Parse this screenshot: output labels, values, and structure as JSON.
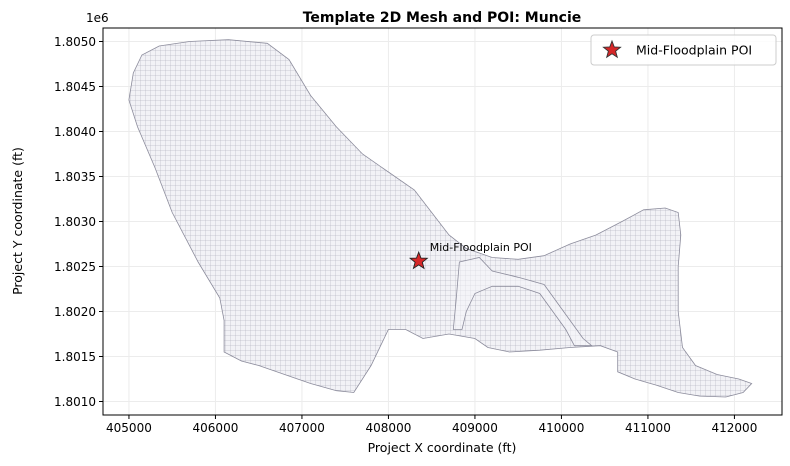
{
  "chart_data": {
    "type": "scatter",
    "title": "Template 2D Mesh and POI: Muncie",
    "xlabel": "Project X coordinate (ft)",
    "ylabel": "Project Y coordinate (ft)",
    "y_offset_label": "1e6",
    "xlim": [
      404700,
      412550
    ],
    "ylim": [
      1.80085,
      1.80515
    ],
    "x_ticks": [
      405000,
      406000,
      407000,
      408000,
      409000,
      410000,
      411000,
      412000
    ],
    "x_tick_labels": [
      "405000",
      "406000",
      "407000",
      "408000",
      "409000",
      "410000",
      "411000",
      "412000"
    ],
    "y_ticks": [
      1.801,
      1.8015,
      1.802,
      1.8025,
      1.803,
      1.8035,
      1.804,
      1.8045,
      1.805
    ],
    "y_tick_labels": [
      "1.8010",
      "1.8015",
      "1.8020",
      "1.8025",
      "1.8030",
      "1.8035",
      "1.8040",
      "1.8045",
      "1.8050"
    ],
    "grid": true,
    "legend_position": "top-right",
    "mesh_outline": [
      [
        405000,
        1.80435
      ],
      [
        405050,
        1.80465
      ],
      [
        405150,
        1.80485
      ],
      [
        405350,
        1.80495
      ],
      [
        405700,
        1.805
      ],
      [
        406150,
        1.80502
      ],
      [
        406600,
        1.80498
      ],
      [
        406850,
        1.8048
      ],
      [
        407100,
        1.8044
      ],
      [
        407400,
        1.80405
      ],
      [
        407700,
        1.80375
      ],
      [
        408000,
        1.80355
      ],
      [
        408300,
        1.80335
      ],
      [
        408500,
        1.8031
      ],
      [
        408700,
        1.80285
      ],
      [
        408900,
        1.8027
      ],
      [
        409200,
        1.8026
      ],
      [
        409500,
        1.80258
      ],
      [
        409800,
        1.80262
      ],
      [
        410100,
        1.80275
      ],
      [
        410400,
        1.80285
      ],
      [
        410700,
        1.803
      ],
      [
        410950,
        1.80313
      ],
      [
        411200,
        1.80315
      ],
      [
        411350,
        1.8031
      ],
      [
        411380,
        1.80285
      ],
      [
        411350,
        1.8025
      ],
      [
        411350,
        1.802
      ],
      [
        411400,
        1.8016
      ],
      [
        411550,
        1.8014
      ],
      [
        411800,
        1.8013
      ],
      [
        412050,
        1.80125
      ],
      [
        412200,
        1.8012
      ],
      [
        412100,
        1.8011
      ],
      [
        411900,
        1.80105
      ],
      [
        411600,
        1.80106
      ],
      [
        411350,
        1.8011
      ],
      [
        411100,
        1.80118
      ],
      [
        410850,
        1.80125
      ],
      [
        410650,
        1.80133
      ],
      [
        410650,
        1.80155
      ],
      [
        410450,
        1.80162
      ],
      [
        410100,
        1.8016
      ],
      [
        409750,
        1.80157
      ],
      [
        409400,
        1.80155
      ],
      [
        409150,
        1.8016
      ],
      [
        409000,
        1.8017
      ],
      [
        408700,
        1.80175
      ],
      [
        408400,
        1.8017
      ],
      [
        408200,
        1.8018
      ],
      [
        408000,
        1.8018
      ],
      [
        407800,
        1.8014
      ],
      [
        407600,
        1.8011
      ],
      [
        407400,
        1.80112
      ],
      [
        407100,
        1.8012
      ],
      [
        406800,
        1.8013
      ],
      [
        406500,
        1.8014
      ],
      [
        406300,
        1.80145
      ],
      [
        406100,
        1.80155
      ],
      [
        406100,
        1.8019
      ],
      [
        406050,
        1.80215
      ],
      [
        405800,
        1.80255
      ],
      [
        405500,
        1.8031
      ],
      [
        405300,
        1.8036
      ],
      [
        405100,
        1.80405
      ]
    ],
    "channel_outline": [
      [
        408820,
        1.80255
      ],
      [
        409050,
        1.8026
      ],
      [
        409200,
        1.80245
      ],
      [
        409500,
        1.80238
      ],
      [
        409800,
        1.8023
      ],
      [
        409950,
        1.8021
      ],
      [
        410100,
        1.8019
      ],
      [
        410250,
        1.8017
      ],
      [
        410350,
        1.80162
      ],
      [
        410150,
        1.80162
      ],
      [
        410050,
        1.8018
      ],
      [
        409900,
        1.802
      ],
      [
        409750,
        1.8022
      ],
      [
        409500,
        1.80228
      ],
      [
        409200,
        1.80228
      ],
      [
        409000,
        1.8022
      ],
      [
        408900,
        1.802
      ],
      [
        408850,
        1.8018
      ],
      [
        408750,
        1.8018
      ],
      [
        408780,
        1.8021
      ]
    ],
    "series": [
      {
        "name": "Mid-Floodplain POI",
        "marker": "star",
        "color": "#d62728",
        "points": [
          {
            "x": 408350,
            "y": 1.80256
          }
        ]
      }
    ],
    "annotations": [
      {
        "text": "Mid-Floodplain POI",
        "x": 408350,
        "y": 1.80256
      }
    ],
    "colors": {
      "mesh_fill": "#eeeef2",
      "mesh_line": "#8c8c9c",
      "grid": "#ececec",
      "poi": "#d62728"
    }
  }
}
